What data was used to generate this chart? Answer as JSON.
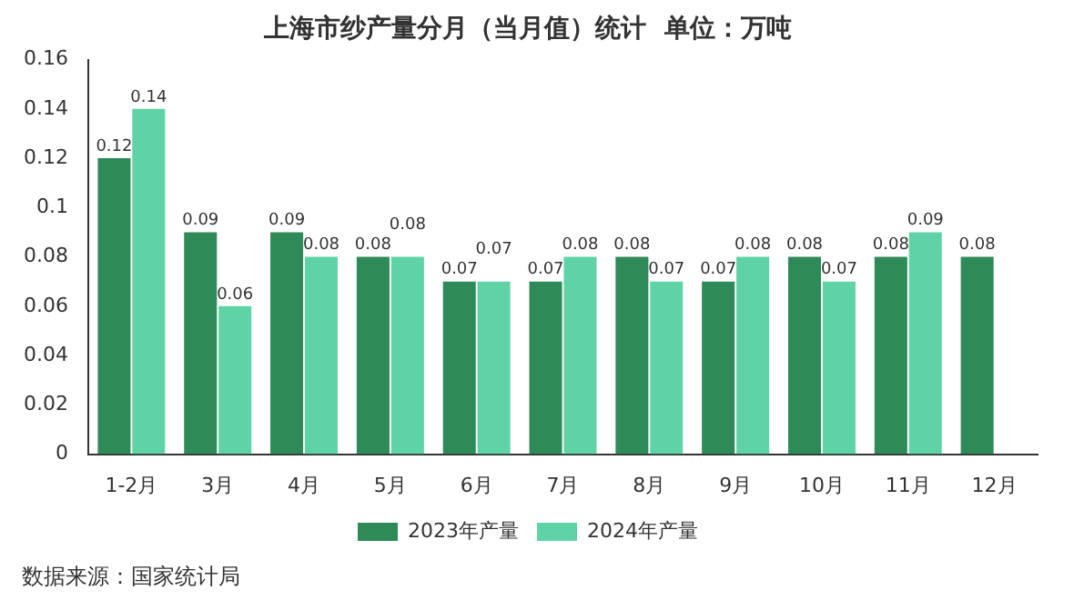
{
  "chart_data": {
    "type": "bar",
    "title": "上海市纱产量分月（当月值）统计  单位：万吨",
    "categories": [
      "1-2月",
      "3月",
      "4月",
      "5月",
      "6月",
      "7月",
      "8月",
      "9月",
      "10月",
      "11月",
      "12月"
    ],
    "series": [
      {
        "name": "2023年产量",
        "color": "#2e8b57",
        "values": [
          0.12,
          0.09,
          0.09,
          0.08,
          0.07,
          0.07,
          0.08,
          0.07,
          0.08,
          0.08,
          0.08
        ]
      },
      {
        "name": "2024年产量",
        "color": "#5fd3a6",
        "values": [
          0.14,
          0.06,
          0.08,
          0.08,
          0.07,
          0.08,
          0.07,
          0.08,
          0.07,
          0.09,
          null
        ]
      }
    ],
    "ylim": [
      0,
      0.16
    ],
    "yticks": [
      0,
      0.02,
      0.04,
      0.06,
      0.08,
      0.1,
      0.12,
      0.14,
      0.16
    ],
    "data_labels": true,
    "legend": "bottom",
    "annotations": [
      "数据来源：国家统计局"
    ]
  }
}
